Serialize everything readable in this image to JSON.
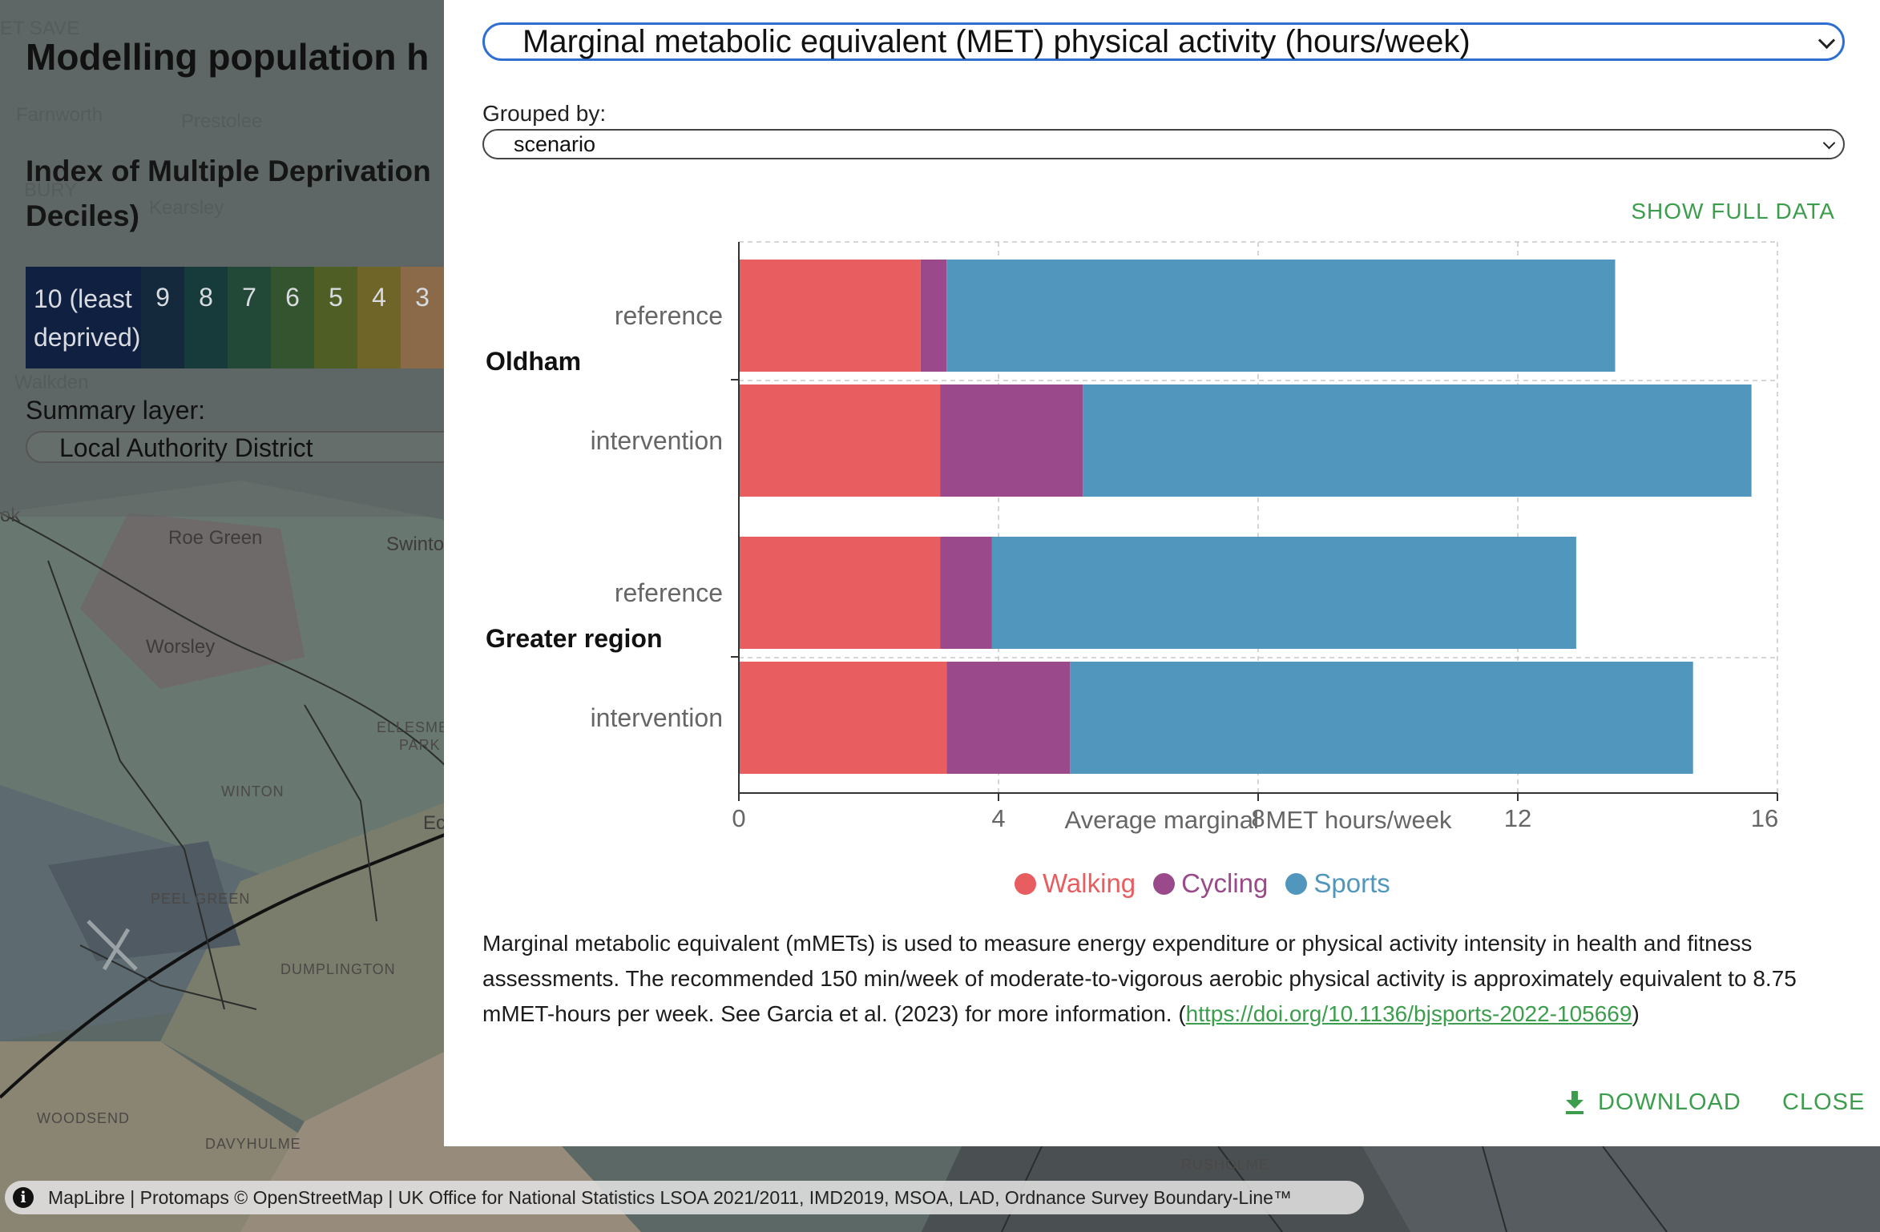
{
  "app": {
    "title": "Modelling population h"
  },
  "map": {
    "labels": [
      {
        "text": "Farnworth",
        "style": "faint"
      },
      {
        "text": "Prestolee",
        "style": "faint"
      },
      {
        "text": "Kearsley",
        "style": "faint"
      },
      {
        "text": "Walkden",
        "style": "faint"
      },
      {
        "text": "Roe Green",
        "style": "normal"
      },
      {
        "text": "Swinto",
        "style": "normal"
      },
      {
        "text": "Worsley",
        "style": "normal"
      },
      {
        "text": "ELLESME",
        "style": "small"
      },
      {
        "text": "PARK",
        "style": "small"
      },
      {
        "text": "WINTON",
        "style": "small"
      },
      {
        "text": "Ec",
        "style": "normal"
      },
      {
        "text": "PEEL GREEN",
        "style": "small"
      },
      {
        "text": "DUMPLINGTON",
        "style": "small"
      },
      {
        "text": "WOODSEND",
        "style": "small"
      },
      {
        "text": "DAVYHULME",
        "style": "small"
      },
      {
        "text": "RUSHOLME",
        "style": "small"
      },
      {
        "text": "ok",
        "style": "normal"
      },
      {
        "text": "BURY",
        "style": "faint"
      },
      {
        "text": "ET SAVE",
        "style": "faint"
      }
    ]
  },
  "left_panel": {
    "imd_title": "Index of Multiple Deprivation Deciles)",
    "deciles": [
      {
        "label": "10 (least deprived)",
        "color": "#102040"
      },
      {
        "label": "9",
        "color": "#14293c"
      },
      {
        "label": "8",
        "color": "#173a3b"
      },
      {
        "label": "7",
        "color": "#224837"
      },
      {
        "label": "6",
        "color": "#33542e"
      },
      {
        "label": "5",
        "color": "#4f5e25"
      },
      {
        "label": "4",
        "color": "#6f6529"
      },
      {
        "label": "3",
        "color": "#8b6a4a"
      }
    ],
    "summary_label": "Summary layer:",
    "summary_value": "Local Authority District"
  },
  "dialog": {
    "metric_select": "Marginal metabolic equivalent (MET) physical activity (hours/week)",
    "grouped_label": "Grouped by:",
    "grouped_value": "scenario",
    "show_full_data": "SHOW FULL DATA",
    "description_text": "Marginal metabolic equivalent (mMETs) is used to measure energy expenditure or physical activity intensity in health and fitness assessments. The recommended 150 min/week of moderate-to-vigorous aerobic physical activity is approximately equivalent to 8.75 mMET-hours per week. See Garcia et al. (2023) for more information. (",
    "description_link": "https://doi.org/10.1136/bjsports-2022-105669",
    "description_end": ")",
    "download_label": "DOWNLOAD",
    "close_label": "CLOSE"
  },
  "chart_data": {
    "type": "bar",
    "orientation": "horizontal",
    "stacked": true,
    "groups": [
      {
        "name": "Oldham",
        "categories": [
          "reference",
          "intervention"
        ]
      },
      {
        "name": "Greater region",
        "categories": [
          "reference",
          "intervention"
        ]
      }
    ],
    "series": [
      {
        "name": "Walking",
        "color": "#e85d60",
        "values": [
          2.8,
          3.1,
          3.1,
          3.2
        ]
      },
      {
        "name": "Cycling",
        "color": "#9a4a8a",
        "values": [
          0.4,
          2.2,
          0.8,
          1.9
        ]
      },
      {
        "name": "Sports",
        "color": "#5196bc",
        "values": [
          10.3,
          10.3,
          9.0,
          9.6
        ]
      }
    ],
    "xlabel": "Average marginal MET hours/week",
    "xlim": [
      0,
      16
    ],
    "xticks": [
      0,
      4,
      8,
      12,
      16
    ],
    "grid": true,
    "legend_position": "bottom"
  },
  "attribution": {
    "info_icon": "i",
    "text": "MapLibre | Protomaps © OpenStreetMap | UK Office for National Statistics LSOA 2021/2011, IMD2019, MSOA, LAD, Ordnance Survey Boundary-Line™"
  }
}
